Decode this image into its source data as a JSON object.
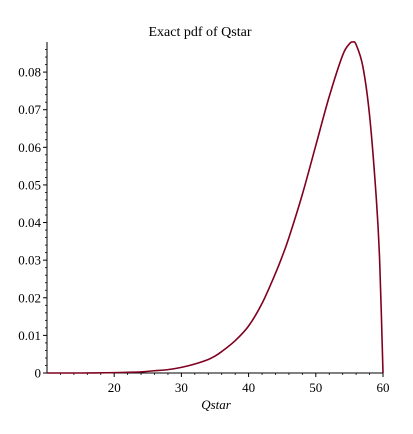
{
  "chart_data": {
    "type": "line",
    "title": "Exact pdf of Qstar",
    "xlabel": "Qstar",
    "ylabel": "",
    "xlim": [
      10,
      60
    ],
    "ylim": [
      0,
      0.088
    ],
    "x_ticks": [
      20,
      30,
      40,
      50,
      60
    ],
    "y_ticks": [
      0,
      0.01,
      0.02,
      0.03,
      0.04,
      0.05,
      0.06,
      0.07,
      0.08
    ],
    "y_tick_labels": [
      "0",
      "0.01",
      "0.02",
      "0.03",
      "0.04",
      "0.05",
      "0.06",
      "0.07",
      "0.08"
    ],
    "grid": false,
    "legend": "none",
    "line_color": "#800020",
    "series": [
      {
        "x": [
          10,
          15,
          20,
          22,
          24,
          26,
          28,
          30,
          32,
          34,
          35,
          36,
          38,
          40,
          42,
          44,
          45,
          46,
          48,
          50,
          52,
          54,
          55,
          55.5,
          56,
          57,
          58,
          59,
          59.5,
          60
        ],
        "y": [
          0,
          0,
          0.0001,
          0.0002,
          0.0003,
          0.0006,
          0.0009,
          0.0015,
          0.0024,
          0.0036,
          0.0045,
          0.0057,
          0.0086,
          0.0125,
          0.0185,
          0.0265,
          0.031,
          0.036,
          0.0475,
          0.0605,
          0.0735,
          0.0845,
          0.0875,
          0.088,
          0.0873,
          0.0815,
          0.0685,
          0.0465,
          0.03,
          0
        ]
      }
    ]
  }
}
